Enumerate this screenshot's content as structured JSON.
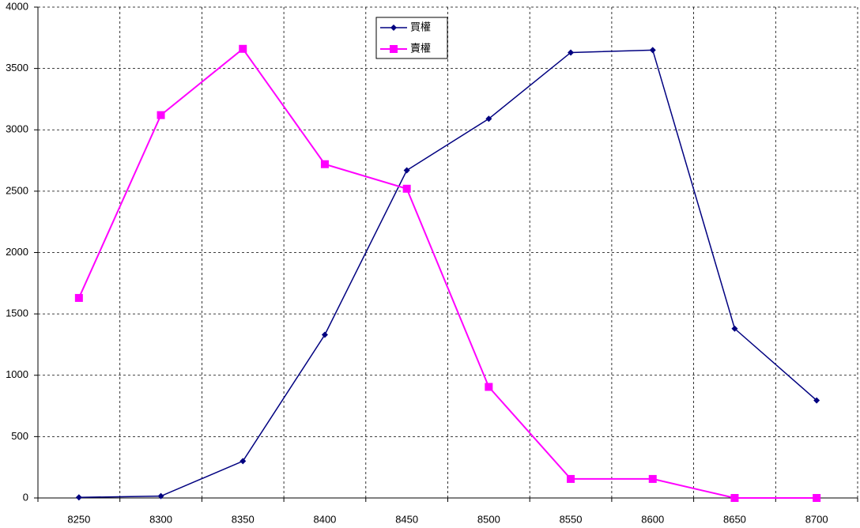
{
  "chart_data": {
    "type": "line",
    "categories": [
      "8250",
      "8300",
      "8350",
      "8400",
      "8450",
      "8500",
      "8550",
      "8600",
      "8650",
      "8700"
    ],
    "series": [
      {
        "name": "買權",
        "color": "#000080",
        "marker": "diamond",
        "values": [
          5,
          15,
          300,
          1330,
          2670,
          3090,
          3630,
          3650,
          1380,
          795
        ]
      },
      {
        "name": "賣權",
        "color": "#ff00ff",
        "marker": "square",
        "values": [
          1630,
          3120,
          3660,
          2720,
          2520,
          905,
          155,
          155,
          0,
          0
        ]
      }
    ],
    "ylim": [
      0,
      4000
    ],
    "yticks": [
      0,
      500,
      1000,
      1500,
      2000,
      2500,
      3000,
      3500,
      4000
    ],
    "grid": true
  }
}
